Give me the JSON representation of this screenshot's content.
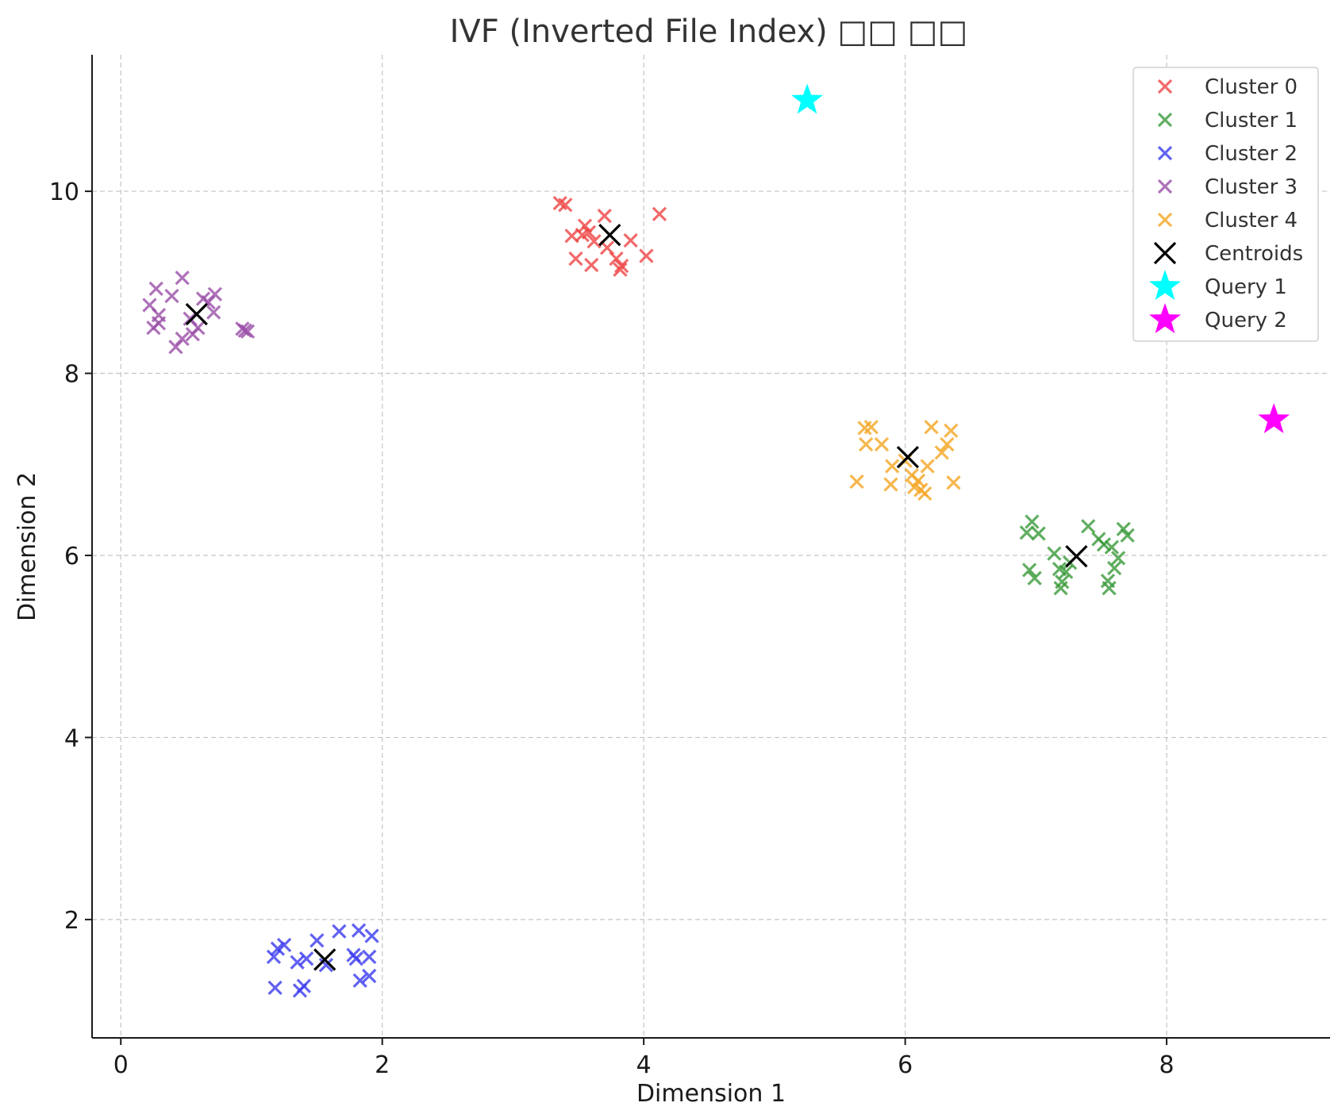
{
  "chart_data": {
    "type": "scatter",
    "title": "IVF (Inverted File Index) □□ □□",
    "xlabel": "Dimension 1",
    "ylabel": "Dimension 2",
    "xlim": [
      -0.22,
      9.25
    ],
    "ylim": [
      0.7,
      11.5
    ],
    "xticks": [
      {
        "value": 0,
        "label": "0"
      },
      {
        "value": 2,
        "label": "2"
      },
      {
        "value": 4,
        "label": "4"
      },
      {
        "value": 6,
        "label": "6"
      },
      {
        "value": 8,
        "label": "8"
      }
    ],
    "yticks": [
      {
        "value": 2,
        "label": "2"
      },
      {
        "value": 4,
        "label": "4"
      },
      {
        "value": 6,
        "label": "6"
      },
      {
        "value": 8,
        "label": "8"
      },
      {
        "value": 10,
        "label": "10"
      }
    ],
    "grid": true,
    "legend_position": "top-right",
    "series": [
      {
        "name": "Cluster 0",
        "color": "#ef4444",
        "marker": "x",
        "points": [
          [
            3.36,
            9.87
          ],
          [
            3.4,
            9.85
          ],
          [
            3.45,
            9.51
          ],
          [
            3.53,
            9.52
          ],
          [
            3.55,
            9.62
          ],
          [
            3.58,
            9.55
          ],
          [
            3.48,
            9.26
          ],
          [
            3.6,
            9.19
          ],
          [
            3.7,
            9.73
          ],
          [
            3.72,
            9.38
          ],
          [
            3.79,
            9.26
          ],
          [
            3.83,
            9.18
          ],
          [
            3.82,
            9.14
          ],
          [
            3.9,
            9.46
          ],
          [
            4.02,
            9.29
          ],
          [
            4.12,
            9.75
          ],
          [
            3.62,
            9.45
          ]
        ]
      },
      {
        "name": "Cluster 1",
        "color": "#3a9a3a",
        "marker": "x",
        "points": [
          [
            6.93,
            6.25
          ],
          [
            6.97,
            6.37
          ],
          [
            7.02,
            6.24
          ],
          [
            6.95,
            5.84
          ],
          [
            6.99,
            5.75
          ],
          [
            7.14,
            6.02
          ],
          [
            7.18,
            5.85
          ],
          [
            7.2,
            5.71
          ],
          [
            7.19,
            5.64
          ],
          [
            7.23,
            5.82
          ],
          [
            7.4,
            6.32
          ],
          [
            7.48,
            6.18
          ],
          [
            7.52,
            6.12
          ],
          [
            7.58,
            6.09
          ],
          [
            7.55,
            5.72
          ],
          [
            7.56,
            5.64
          ],
          [
            7.6,
            5.86
          ],
          [
            7.63,
            5.97
          ],
          [
            7.67,
            6.29
          ],
          [
            7.7,
            6.22
          ],
          [
            7.26,
            5.92
          ]
        ]
      },
      {
        "name": "Cluster 2",
        "color": "#3a3aef",
        "marker": "x",
        "points": [
          [
            1.17,
            1.59
          ],
          [
            1.2,
            1.68
          ],
          [
            1.25,
            1.72
          ],
          [
            1.18,
            1.25
          ],
          [
            1.35,
            1.53
          ],
          [
            1.42,
            1.57
          ],
          [
            1.37,
            1.22
          ],
          [
            1.4,
            1.27
          ],
          [
            1.5,
            1.77
          ],
          [
            1.67,
            1.87
          ],
          [
            1.78,
            1.61
          ],
          [
            1.8,
            1.57
          ],
          [
            1.82,
            1.88
          ],
          [
            1.83,
            1.33
          ],
          [
            1.9,
            1.38
          ],
          [
            1.92,
            1.82
          ],
          [
            1.9,
            1.59
          ],
          [
            1.57,
            1.5
          ]
        ]
      },
      {
        "name": "Cluster 3",
        "color": "#9b4ea8",
        "marker": "x",
        "points": [
          [
            0.22,
            8.75
          ],
          [
            0.27,
            8.93
          ],
          [
            0.29,
            8.64
          ],
          [
            0.25,
            8.5
          ],
          [
            0.29,
            8.55
          ],
          [
            0.39,
            8.85
          ],
          [
            0.42,
            8.29
          ],
          [
            0.47,
            8.38
          ],
          [
            0.47,
            9.05
          ],
          [
            0.55,
            8.43
          ],
          [
            0.59,
            8.5
          ],
          [
            0.63,
            8.82
          ],
          [
            0.67,
            8.78
          ],
          [
            0.71,
            8.67
          ],
          [
            0.72,
            8.87
          ],
          [
            0.93,
            8.49
          ],
          [
            0.95,
            8.47
          ],
          [
            0.97,
            8.46
          ],
          [
            0.53,
            8.6
          ]
        ]
      },
      {
        "name": "Cluster 4",
        "color": "#f5a623",
        "marker": "x",
        "points": [
          [
            5.63,
            6.81
          ],
          [
            5.69,
            7.4
          ],
          [
            5.74,
            7.41
          ],
          [
            5.7,
            7.22
          ],
          [
            5.82,
            7.22
          ],
          [
            5.89,
            6.78
          ],
          [
            5.9,
            6.98
          ],
          [
            6.0,
            7.04
          ],
          [
            6.05,
            6.88
          ],
          [
            6.1,
            6.82
          ],
          [
            6.12,
            6.72
          ],
          [
            6.15,
            6.68
          ],
          [
            6.17,
            6.98
          ],
          [
            6.2,
            7.41
          ],
          [
            6.28,
            7.13
          ],
          [
            6.32,
            7.22
          ],
          [
            6.35,
            7.37
          ],
          [
            6.37,
            6.8
          ],
          [
            6.07,
            6.75
          ]
        ]
      }
    ],
    "centroids": {
      "name": "Centroids",
      "color": "#000000",
      "marker": "X",
      "points": [
        [
          3.74,
          9.52
        ],
        [
          7.31,
          5.99
        ],
        [
          1.56,
          1.56
        ],
        [
          0.58,
          8.65
        ],
        [
          6.02,
          7.08
        ]
      ]
    },
    "queries": [
      {
        "name": "Query 1",
        "color": "#00ffff",
        "marker": "star",
        "x": 5.25,
        "y": 11.0
      },
      {
        "name": "Query 2",
        "color": "#ff00ff",
        "marker": "star",
        "x": 8.82,
        "y": 7.49
      }
    ]
  }
}
